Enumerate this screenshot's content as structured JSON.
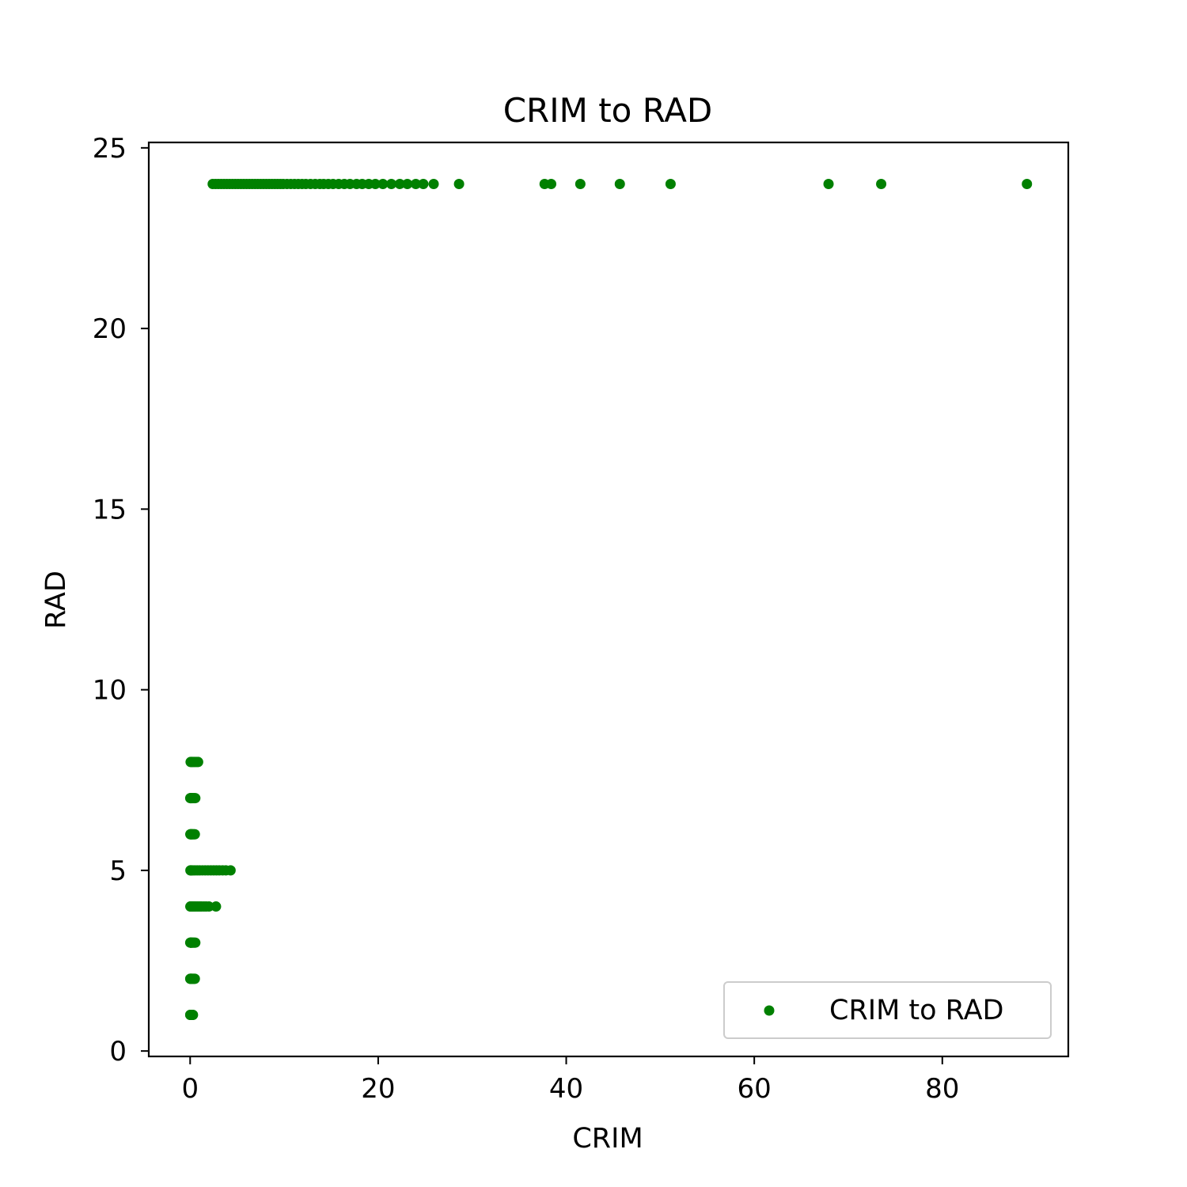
{
  "chart_data": {
    "type": "scatter",
    "title": "CRIM to RAD",
    "xlabel": "CRIM",
    "ylabel": "RAD",
    "xlim": [
      -4.4,
      93.4
    ],
    "ylim": [
      -0.15,
      25.15
    ],
    "xticks": [
      0,
      20,
      40,
      60,
      80
    ],
    "yticks": [
      0,
      5,
      10,
      15,
      20,
      25
    ],
    "xtick_labels": [
      "0",
      "20",
      "40",
      "60",
      "80"
    ],
    "ytick_labels": [
      "0",
      "5",
      "10",
      "15",
      "20",
      "25"
    ],
    "grid": false,
    "legend_position": "lower-right",
    "marker_color": "#008000",
    "series": [
      {
        "name": "CRIM to RAD",
        "points": [
          [
            0.01,
            1
          ],
          [
            0.02,
            1
          ],
          [
            0.05,
            1
          ],
          [
            0.09,
            1
          ],
          [
            0.12,
            1
          ],
          [
            0.16,
            1
          ],
          [
            0.2,
            1
          ],
          [
            0.25,
            1
          ],
          [
            0.3,
            1
          ],
          [
            0.01,
            2
          ],
          [
            0.03,
            2
          ],
          [
            0.06,
            2
          ],
          [
            0.1,
            2
          ],
          [
            0.14,
            2
          ],
          [
            0.2,
            2
          ],
          [
            0.26,
            2
          ],
          [
            0.34,
            2
          ],
          [
            0.42,
            2
          ],
          [
            0.5,
            2
          ],
          [
            0.01,
            3
          ],
          [
            0.03,
            3
          ],
          [
            0.06,
            3
          ],
          [
            0.1,
            3
          ],
          [
            0.15,
            3
          ],
          [
            0.2,
            3
          ],
          [
            0.27,
            3
          ],
          [
            0.35,
            3
          ],
          [
            0.45,
            3
          ],
          [
            0.55,
            3
          ],
          [
            0.02,
            4
          ],
          [
            0.05,
            4
          ],
          [
            0.1,
            4
          ],
          [
            0.2,
            4
          ],
          [
            0.3,
            4
          ],
          [
            0.45,
            4
          ],
          [
            0.6,
            4
          ],
          [
            0.8,
            4
          ],
          [
            1.0,
            4
          ],
          [
            1.2,
            4
          ],
          [
            1.45,
            4
          ],
          [
            1.7,
            4
          ],
          [
            2.0,
            4
          ],
          [
            2.75,
            4
          ],
          [
            0.03,
            5
          ],
          [
            0.07,
            5
          ],
          [
            0.15,
            5
          ],
          [
            0.3,
            5
          ],
          [
            0.5,
            5
          ],
          [
            0.75,
            5
          ],
          [
            1.0,
            5
          ],
          [
            1.3,
            5
          ],
          [
            1.6,
            5
          ],
          [
            1.9,
            5
          ],
          [
            2.2,
            5
          ],
          [
            2.5,
            5
          ],
          [
            2.8,
            5
          ],
          [
            3.1,
            5
          ],
          [
            3.45,
            5
          ],
          [
            3.8,
            5
          ],
          [
            4.3,
            5
          ],
          [
            0.02,
            6
          ],
          [
            0.05,
            6
          ],
          [
            0.1,
            6
          ],
          [
            0.16,
            6
          ],
          [
            0.22,
            6
          ],
          [
            0.3,
            6
          ],
          [
            0.4,
            6
          ],
          [
            0.5,
            6
          ],
          [
            0.01,
            7
          ],
          [
            0.04,
            7
          ],
          [
            0.08,
            7
          ],
          [
            0.13,
            7
          ],
          [
            0.19,
            7
          ],
          [
            0.26,
            7
          ],
          [
            0.34,
            7
          ],
          [
            0.45,
            7
          ],
          [
            0.55,
            7
          ],
          [
            0.05,
            8
          ],
          [
            0.12,
            8
          ],
          [
            0.2,
            8
          ],
          [
            0.3,
            8
          ],
          [
            0.42,
            8
          ],
          [
            0.55,
            8
          ],
          [
            0.7,
            8
          ],
          [
            0.85,
            8
          ],
          [
            2.4,
            24
          ],
          [
            2.7,
            24
          ],
          [
            3.0,
            24
          ],
          [
            3.3,
            24
          ],
          [
            3.6,
            24
          ],
          [
            3.9,
            24
          ],
          [
            4.2,
            24
          ],
          [
            4.5,
            24
          ],
          [
            4.8,
            24
          ],
          [
            5.1,
            24
          ],
          [
            5.4,
            24
          ],
          [
            5.7,
            24
          ],
          [
            6.0,
            24
          ],
          [
            6.3,
            24
          ],
          [
            6.6,
            24
          ],
          [
            6.9,
            24
          ],
          [
            7.2,
            24
          ],
          [
            7.5,
            24
          ],
          [
            7.8,
            24
          ],
          [
            8.1,
            24
          ],
          [
            8.4,
            24
          ],
          [
            8.7,
            24
          ],
          [
            9.0,
            24
          ],
          [
            9.3,
            24
          ],
          [
            9.6,
            24
          ],
          [
            9.9,
            24
          ],
          [
            10.3,
            24
          ],
          [
            10.7,
            24
          ],
          [
            11.1,
            24
          ],
          [
            11.5,
            24
          ],
          [
            11.9,
            24
          ],
          [
            12.3,
            24
          ],
          [
            12.8,
            24
          ],
          [
            13.3,
            24
          ],
          [
            13.8,
            24
          ],
          [
            14.2,
            24
          ],
          [
            14.7,
            24
          ],
          [
            15.2,
            24
          ],
          [
            15.8,
            24
          ],
          [
            16.4,
            24
          ],
          [
            17.0,
            24
          ],
          [
            17.7,
            24
          ],
          [
            18.3,
            24
          ],
          [
            19.0,
            24
          ],
          [
            19.7,
            24
          ],
          [
            20.5,
            24
          ],
          [
            21.4,
            24
          ],
          [
            22.3,
            24
          ],
          [
            23.1,
            24
          ],
          [
            24.0,
            24
          ],
          [
            24.8,
            24
          ],
          [
            25.9,
            24
          ],
          [
            28.6,
            24
          ],
          [
            37.7,
            24
          ],
          [
            38.4,
            24
          ],
          [
            41.5,
            24
          ],
          [
            45.7,
            24
          ],
          [
            51.1,
            24
          ],
          [
            67.9,
            24
          ],
          [
            73.5,
            24
          ],
          [
            89.0,
            24
          ]
        ]
      }
    ]
  }
}
